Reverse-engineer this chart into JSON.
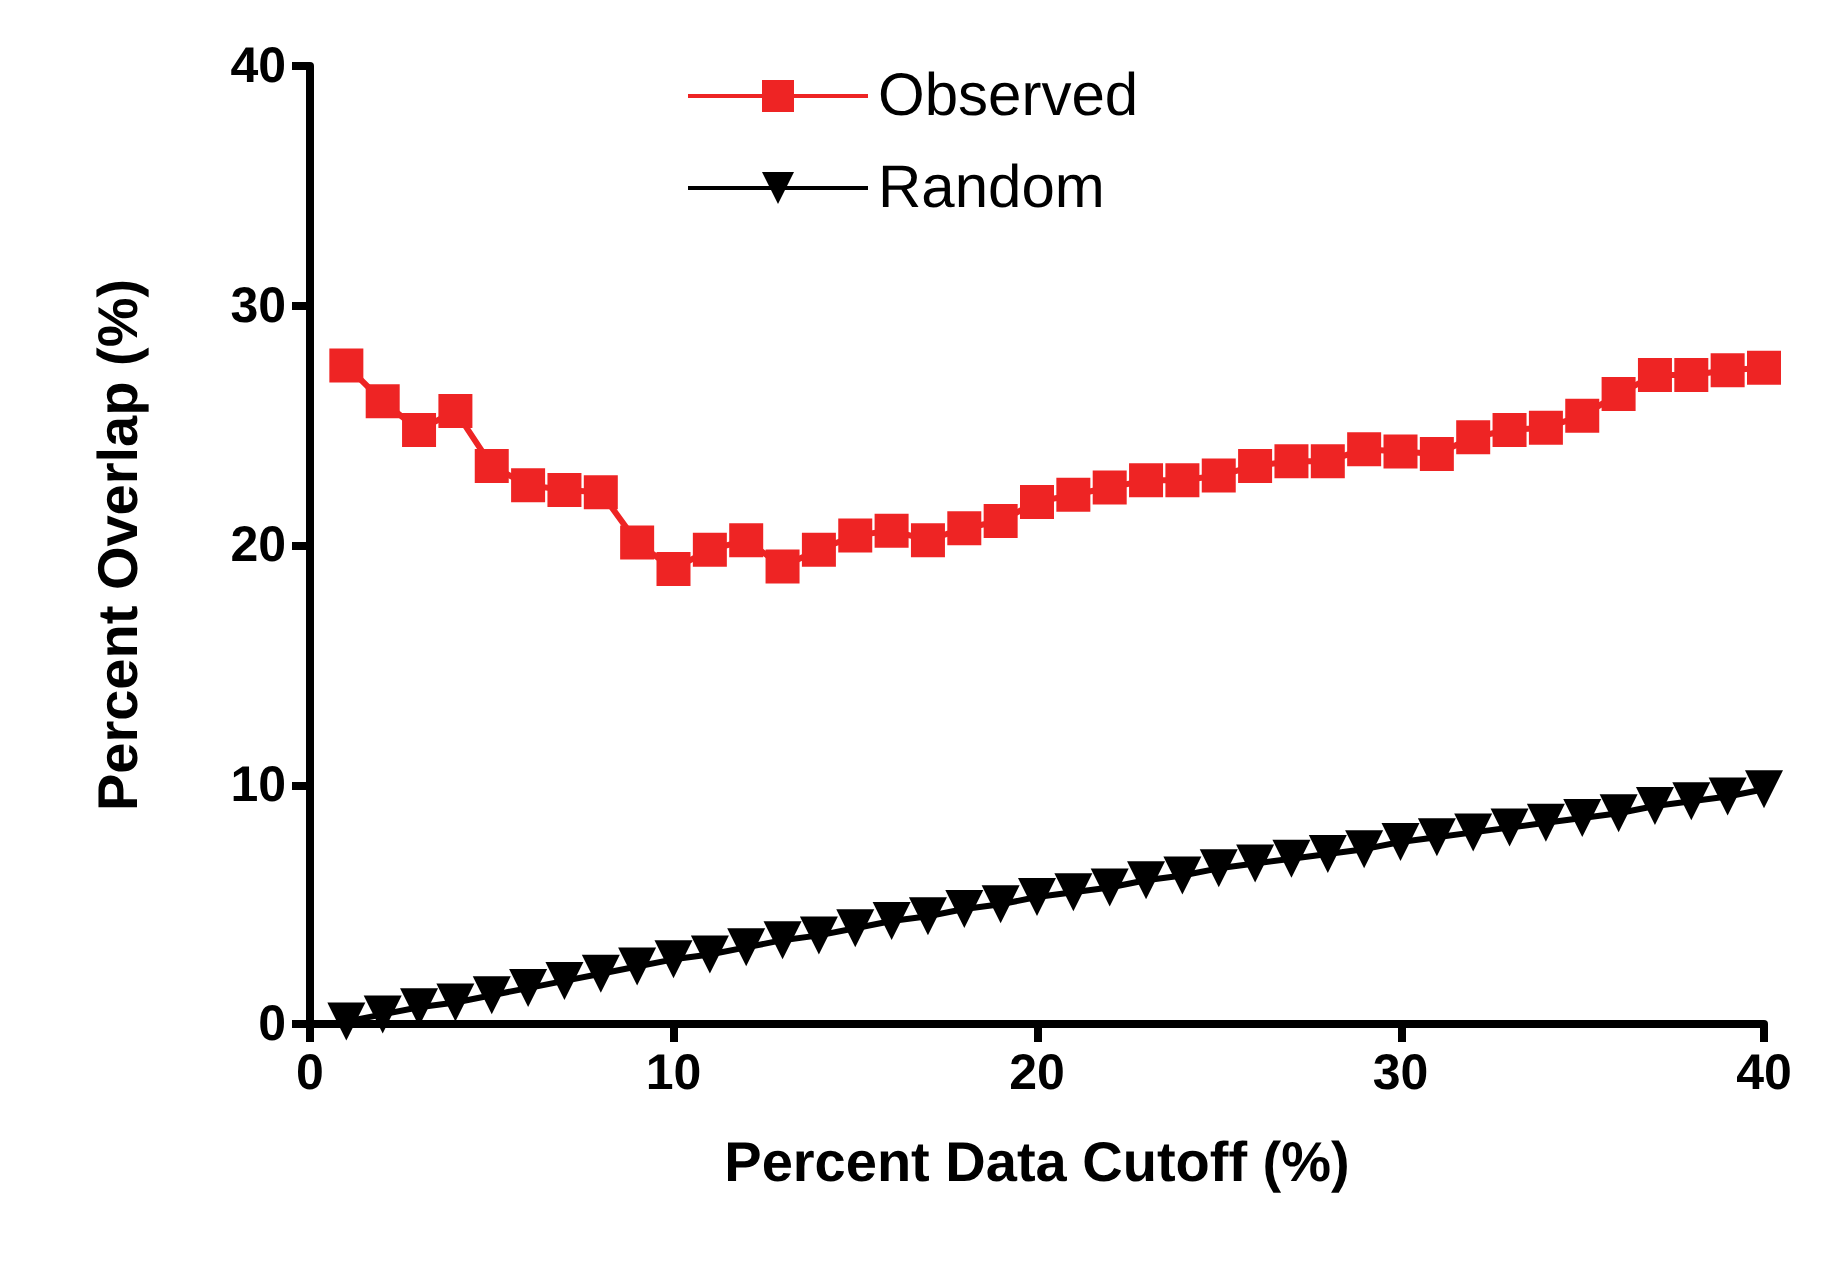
{
  "chart_data": {
    "type": "line",
    "xlabel": "Percent Data Cutoff (%)",
    "ylabel": "Percent Overlap (%)",
    "x": [
      1,
      2,
      3,
      4,
      5,
      6,
      7,
      8,
      9,
      10,
      11,
      12,
      13,
      14,
      15,
      16,
      17,
      18,
      19,
      20,
      21,
      22,
      23,
      24,
      25,
      26,
      27,
      28,
      29,
      30,
      31,
      32,
      33,
      34,
      35,
      36,
      37,
      38,
      39,
      40
    ],
    "series": [
      {
        "name": "Observed",
        "color": "#ee2424",
        "marker": "square",
        "values": [
          27.5,
          26.0,
          24.8,
          25.6,
          23.3,
          22.5,
          22.3,
          22.2,
          20.1,
          19.0,
          19.8,
          20.2,
          19.1,
          19.8,
          20.4,
          20.6,
          20.2,
          20.7,
          21.0,
          21.8,
          22.1,
          22.4,
          22.7,
          22.7,
          22.9,
          23.3,
          23.5,
          23.5,
          24.0,
          23.9,
          23.8,
          24.5,
          24.8,
          24.9,
          25.4,
          26.3,
          27.1,
          27.1,
          27.3,
          27.4
        ]
      },
      {
        "name": "Random",
        "color": "#000000",
        "marker": "triangle",
        "values": [
          0.1,
          0.4,
          0.7,
          0.9,
          1.2,
          1.5,
          1.8,
          2.1,
          2.4,
          2.7,
          2.9,
          3.2,
          3.5,
          3.7,
          4.0,
          4.3,
          4.5,
          4.8,
          5.0,
          5.3,
          5.5,
          5.7,
          6.0,
          6.2,
          6.5,
          6.7,
          6.9,
          7.1,
          7.3,
          7.6,
          7.8,
          8.0,
          8.2,
          8.4,
          8.6,
          8.8,
          9.1,
          9.3,
          9.5,
          9.8
        ]
      }
    ],
    "xlim": [
      0,
      40
    ],
    "xticks": [
      0,
      10,
      20,
      30,
      40
    ],
    "ylim": [
      0,
      40
    ],
    "yticks": [
      0,
      10,
      20,
      30,
      40
    ],
    "grid": false,
    "legend": "top",
    "line_style": "solid"
  }
}
